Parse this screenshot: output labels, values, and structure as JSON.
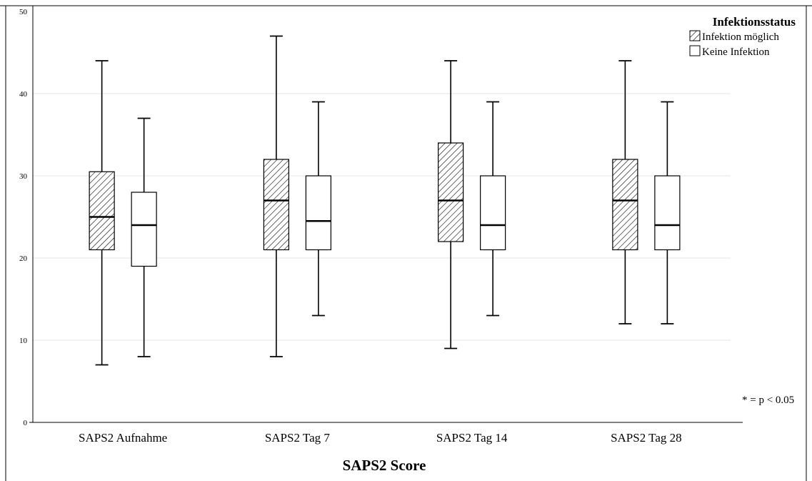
{
  "chart_data": {
    "type": "box",
    "title": "",
    "xlabel": "SAPS2 Score",
    "ylabel": "",
    "ylim": [
      0,
      50
    ],
    "yticks": [
      "0",
      "10",
      "20",
      "30",
      "40",
      "50"
    ],
    "grid": true,
    "legend_position": "top-right",
    "categories": [
      "SAPS2 Aufnahme",
      "SAPS2 Tag 7",
      "SAPS2 Tag 14",
      "SAPS2 Tag 28"
    ],
    "legend": {
      "title": "Infektionsstatus",
      "entries": [
        "Infektion möglich",
        "Keine Infektion"
      ]
    },
    "series": [
      {
        "name": "Infektion möglich",
        "pattern": "hatched",
        "boxes": [
          {
            "min": 7,
            "q1": 21,
            "median": 25,
            "q3": 30.5,
            "max": 44
          },
          {
            "min": 8,
            "q1": 21,
            "median": 27,
            "q3": 32,
            "max": 47
          },
          {
            "min": 9,
            "q1": 22,
            "median": 27,
            "q3": 34,
            "max": 44
          },
          {
            "min": 12,
            "q1": 21,
            "median": 27,
            "q3": 32,
            "max": 44
          }
        ]
      },
      {
        "name": "Keine Infektion",
        "pattern": "none",
        "boxes": [
          {
            "min": 8,
            "q1": 19,
            "median": 24,
            "q3": 28,
            "max": 37
          },
          {
            "min": 13,
            "q1": 21,
            "median": 24.5,
            "q3": 30,
            "max": 39
          },
          {
            "min": 13,
            "q1": 21,
            "median": 24,
            "q3": 30,
            "max": 39
          },
          {
            "min": 12,
            "q1": 21,
            "median": 24,
            "q3": 30,
            "max": 39
          }
        ]
      }
    ],
    "annotation": "* = p < 0.05",
    "colors": {
      "stroke": "#000000",
      "grid": "#e6e6e6",
      "box_fill": "#ffffff"
    }
  }
}
